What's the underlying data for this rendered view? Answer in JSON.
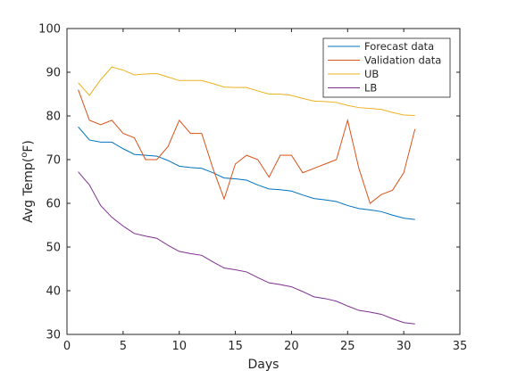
{
  "chart_data": {
    "type": "line",
    "title": "",
    "xlabel": "Days",
    "ylabel_main": "Avg Temp(",
    "ylabel_sup": "o",
    "ylabel_end": "F)",
    "xlim": [
      0,
      35
    ],
    "ylim": [
      30,
      100
    ],
    "xticks": [
      0,
      5,
      10,
      15,
      20,
      25,
      30,
      35
    ],
    "yticks": [
      30,
      40,
      50,
      60,
      70,
      80,
      90,
      100
    ],
    "grid": false,
    "legend_position": "top-right",
    "x": [
      1,
      2,
      3,
      4,
      5,
      6,
      7,
      8,
      9,
      10,
      11,
      12,
      13,
      14,
      15,
      16,
      17,
      18,
      19,
      20,
      21,
      22,
      23,
      24,
      25,
      26,
      27,
      28,
      29,
      30,
      31
    ],
    "series": [
      {
        "name": "Forecast data",
        "color": "#0072BD",
        "values": [
          77.5,
          74.5,
          74,
          74,
          72.5,
          71.2,
          71,
          70.8,
          69.8,
          68.5,
          68.2,
          68,
          67,
          65.8,
          65.6,
          65.3,
          64.2,
          63.3,
          63.1,
          62.8,
          61.9,
          61.1,
          60.8,
          60.4,
          59.5,
          58.8,
          58.5,
          58.1,
          57.3,
          56.6,
          56.3
        ]
      },
      {
        "name": "Validation data",
        "color": "#D95319",
        "values": [
          86,
          79,
          78,
          79,
          76,
          75,
          70,
          70,
          73,
          79,
          76,
          76,
          68,
          61,
          69,
          71,
          70,
          66,
          71,
          71,
          67,
          68,
          69,
          70,
          79,
          68,
          60,
          62,
          63,
          67,
          77
        ]
      },
      {
        "name": "UB",
        "color": "#EDB120",
        "values": [
          87.6,
          84.7,
          88.3,
          91.2,
          90.5,
          89.4,
          89.6,
          89.7,
          88.9,
          88.1,
          88.1,
          88.1,
          87.4,
          86.6,
          86.5,
          86.5,
          85.7,
          85,
          85,
          84.7,
          84,
          83.4,
          83.3,
          83.1,
          82.4,
          81.9,
          81.7,
          81.5,
          80.8,
          80.2,
          80.1
        ]
      },
      {
        "name": "LB",
        "color": "#7E2F8E",
        "values": [
          67.2,
          64.2,
          59.5,
          56.8,
          54.8,
          53.1,
          52.5,
          52,
          50.4,
          49,
          48.5,
          48.1,
          46.6,
          45.2,
          44.8,
          44.3,
          43,
          41.8,
          41.4,
          40.9,
          39.8,
          38.6,
          38.2,
          37.6,
          36.5,
          35.5,
          35.1,
          34.6,
          33.6,
          32.7,
          32.4
        ]
      }
    ]
  }
}
